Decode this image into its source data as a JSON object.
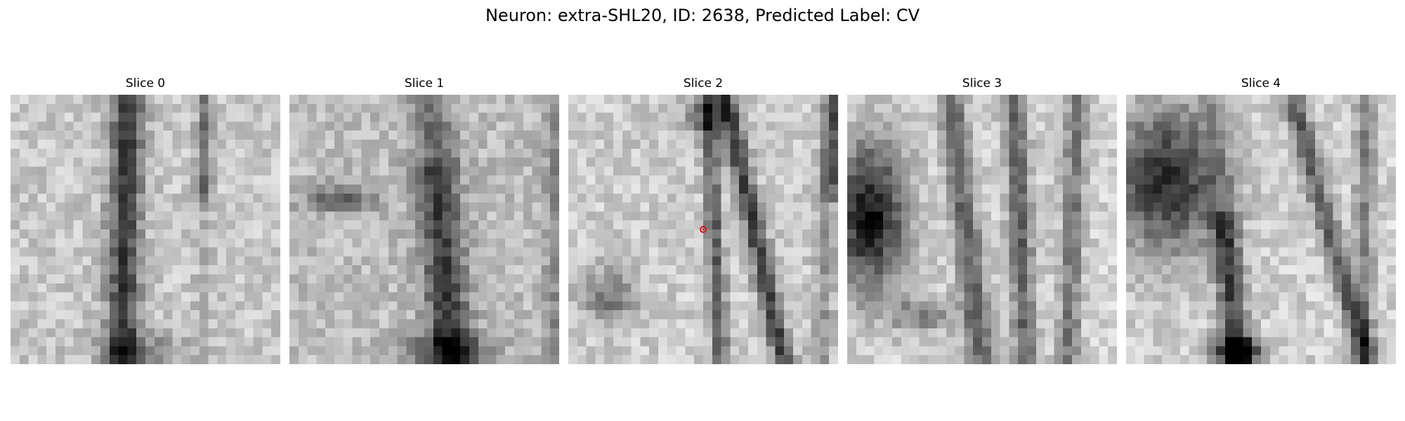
{
  "figure": {
    "title": "Neuron: extra-SHL20, ID: 2638, Predicted Label: CV"
  },
  "slices": [
    {
      "title": "Slice 0",
      "pattern": "slice0",
      "marker": false
    },
    {
      "title": "Slice 1",
      "pattern": "slice1",
      "marker": false
    },
    {
      "title": "Slice 2",
      "pattern": "slice2",
      "marker": true
    },
    {
      "title": "Slice 3",
      "pattern": "slice3",
      "marker": false
    },
    {
      "title": "Slice 4",
      "pattern": "slice4",
      "marker": false
    }
  ],
  "colors": {
    "marker": "#e01010",
    "background": "#ffffff"
  },
  "colormap": "gray"
}
